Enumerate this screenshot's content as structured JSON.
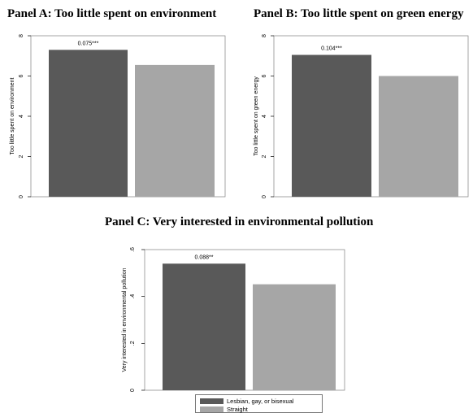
{
  "chart_data": [
    {
      "type": "bar",
      "title": "Panel A: Too little spent on environment",
      "xlabel": "",
      "ylabel": "Too little spent on environment",
      "ylim": [
        0,
        8
      ],
      "yticks": [
        "0",
        "2",
        "4",
        "6",
        "8"
      ],
      "categories": [
        "Lesbian, gay, or bisexual",
        "Straight"
      ],
      "values": [
        7.3,
        6.55
      ],
      "annotation": "0.075***",
      "colors": [
        "#595959",
        "#a6a6a6"
      ],
      "grid": false
    },
    {
      "type": "bar",
      "title": "Panel B: Too little spent on green energy",
      "xlabel": "",
      "ylabel": "Too little spent on green energy",
      "ylim": [
        0,
        8
      ],
      "yticks": [
        "0",
        "2",
        "4",
        "6",
        "8"
      ],
      "categories": [
        "Lesbian, gay, or bisexual",
        "Straight"
      ],
      "values": [
        7.05,
        6.0
      ],
      "annotation": "0.104***",
      "colors": [
        "#595959",
        "#a6a6a6"
      ],
      "grid": false
    },
    {
      "type": "bar",
      "title": "Panel C: Very interested in environmental pollution",
      "xlabel": "",
      "ylabel": "Very interested in environmental pollution",
      "ylim": [
        0,
        0.6
      ],
      "yticks": [
        "0",
        ".2",
        ".4",
        ".6"
      ],
      "categories": [
        "Lesbian, gay, or bisexual",
        "Straight"
      ],
      "values": [
        0.54,
        0.452
      ],
      "annotation": "0.088**",
      "colors": [
        "#595959",
        "#a6a6a6"
      ],
      "grid": false
    }
  ],
  "legend": {
    "placement": "bottom",
    "items": [
      {
        "label": "Lesbian, gay, or bisexual",
        "color": "#595959"
      },
      {
        "label": "Straight",
        "color": "#a6a6a6"
      }
    ]
  }
}
